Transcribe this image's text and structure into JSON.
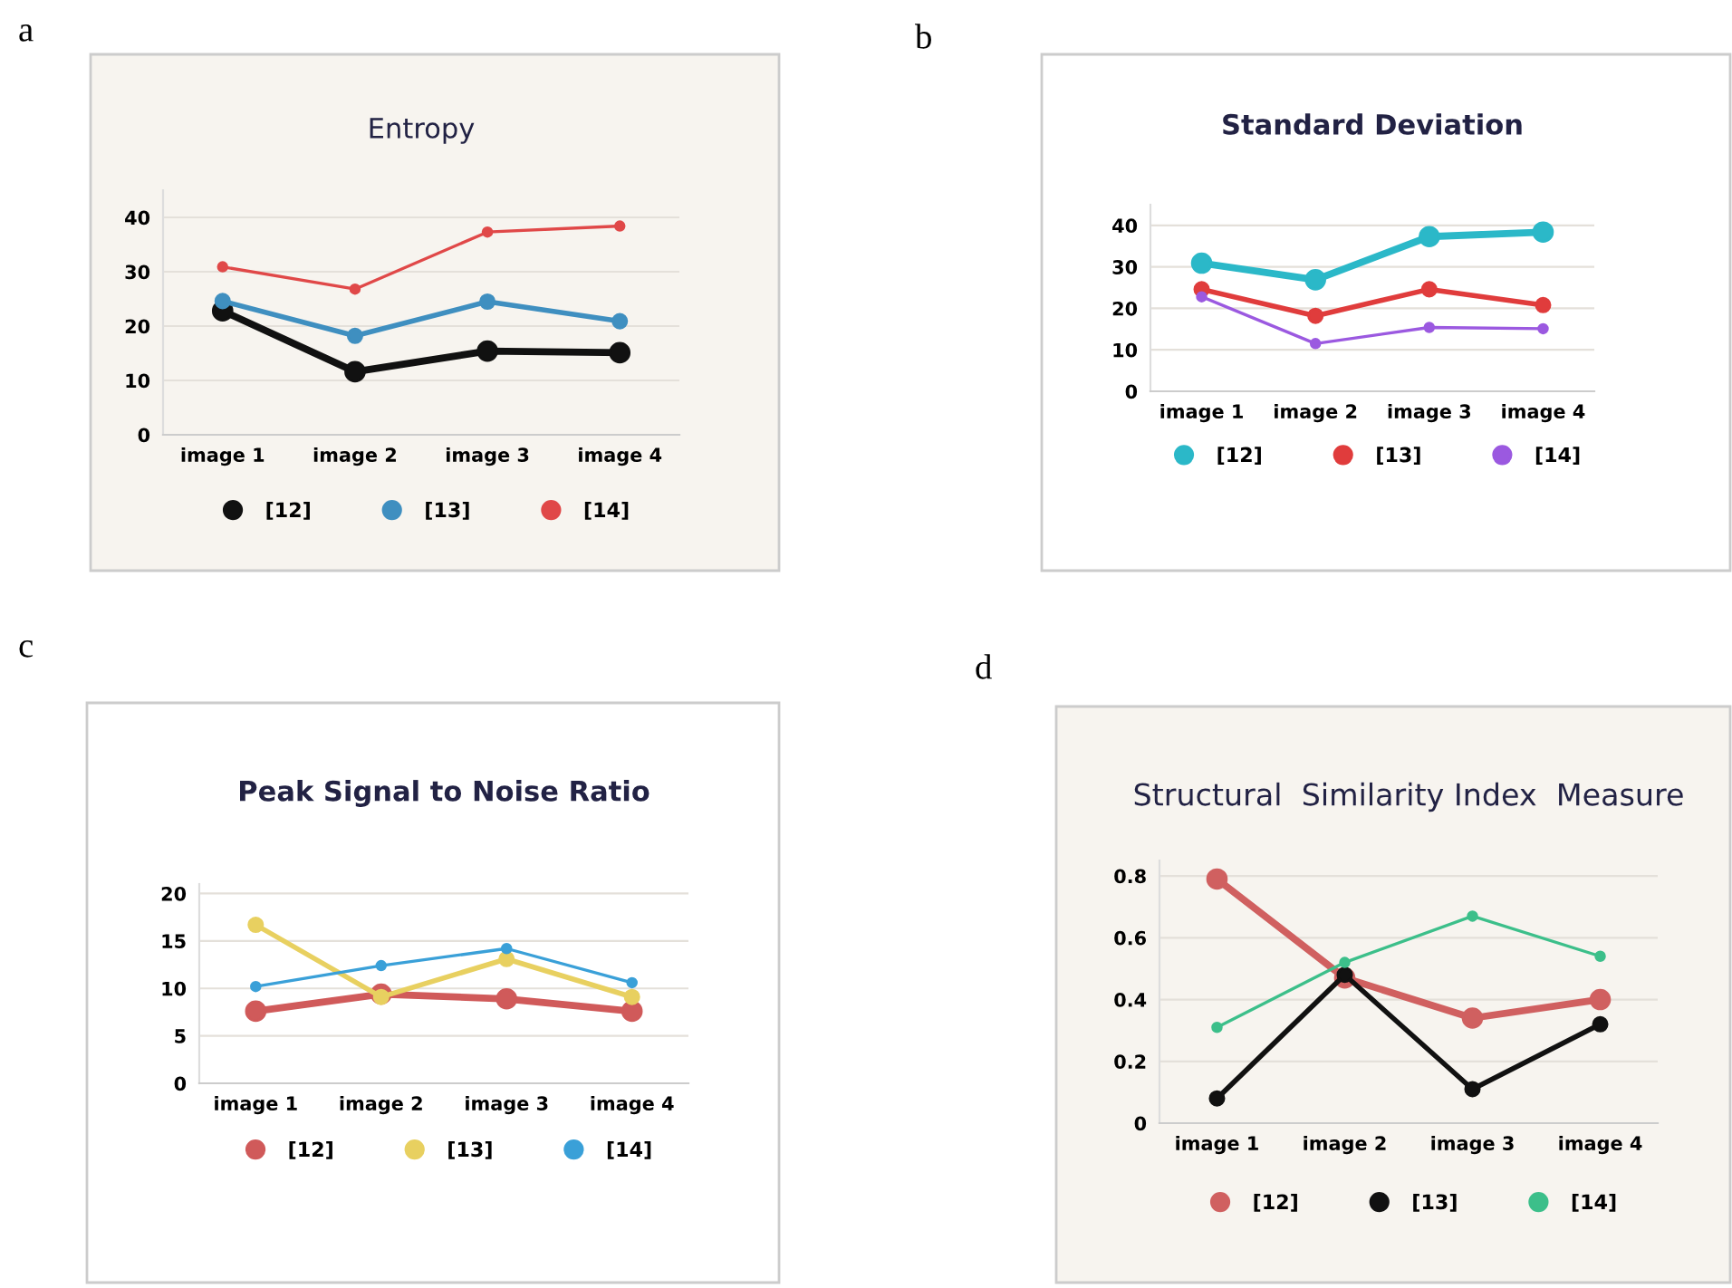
{
  "chart_data": [
    {
      "type": "line",
      "title": "Entropy",
      "annotations": [
        "a"
      ],
      "categories": [
        "image 1",
        "image 2",
        "image 3",
        "image 4"
      ],
      "series": [
        {
          "name": "[12]",
          "color": "#111111",
          "values": [
            22.8,
            11.6,
            15.4,
            15.1
          ]
        },
        {
          "name": "[13]",
          "color": "#3f8fc0",
          "values": [
            24.6,
            18.2,
            24.5,
            20.9
          ]
        },
        {
          "name": "[14]",
          "color": "#e04848",
          "values": [
            30.9,
            26.8,
            37.3,
            38.4
          ]
        }
      ],
      "ylim": [
        0,
        45
      ],
      "yticks": [
        0,
        10,
        20,
        30,
        40
      ],
      "grid": "y",
      "legend": "bottom",
      "marker": "circle",
      "line_style": "solid"
    },
    {
      "type": "line",
      "title": "Standard Deviation",
      "annotations": [
        "b"
      ],
      "categories": [
        "image 1",
        "image 2",
        "image 3",
        "image 4"
      ],
      "series": [
        {
          "name": "[12]",
          "color": "#2bb8c8",
          "values": [
            30.9,
            26.9,
            37.3,
            38.4
          ]
        },
        {
          "name": "[13]",
          "color": "#e03c3c",
          "values": [
            24.6,
            18.2,
            24.6,
            20.8
          ]
        },
        {
          "name": "[14]",
          "color": "#9b59e0",
          "values": [
            22.8,
            11.5,
            15.4,
            15.1
          ]
        }
      ],
      "ylim": [
        0,
        45
      ],
      "yticks": [
        0,
        10,
        20,
        30,
        40
      ],
      "grid": "y",
      "legend": "bottom",
      "marker": "circle",
      "line_style": "solid"
    },
    {
      "type": "line",
      "title": "Peak Signal to Noise Ratio",
      "annotations": [
        "c"
      ],
      "categories": [
        "image 1",
        "image 2",
        "image 3",
        "image 4"
      ],
      "series": [
        {
          "name": "[12]",
          "color": "#d05a5a",
          "values": [
            7.6,
            9.4,
            8.9,
            7.6
          ]
        },
        {
          "name": "[13]",
          "color": "#e8d060",
          "values": [
            16.7,
            9.1,
            13.1,
            9.1
          ]
        },
        {
          "name": "[14]",
          "color": "#3aa0d8",
          "values": [
            10.2,
            12.4,
            14.2,
            10.6
          ]
        }
      ],
      "ylim": [
        0,
        21
      ],
      "yticks": [
        0,
        5,
        10,
        15,
        20
      ],
      "grid": "y",
      "legend": "bottom",
      "marker": "circle",
      "line_style": "solid"
    },
    {
      "type": "line",
      "title": "Structural  Similarity Index  Measure",
      "annotations": [
        "d"
      ],
      "categories": [
        "image 1",
        "image 2",
        "image 3",
        "image 4"
      ],
      "series": [
        {
          "name": "[12]",
          "color": "#d06060",
          "values": [
            0.79,
            0.47,
            0.34,
            0.4
          ]
        },
        {
          "name": "[13]",
          "color": "#111111",
          "values": [
            0.08,
            0.48,
            0.11,
            0.32
          ]
        },
        {
          "name": "[14]",
          "color": "#3cbf8a",
          "values": [
            0.31,
            0.52,
            0.67,
            0.54
          ]
        }
      ],
      "ylim": [
        0,
        0.85
      ],
      "yticks": [
        {
          "value": 0,
          "label": "0"
        },
        0.2,
        0.4,
        0.6,
        0.8
      ],
      "grid": "y",
      "legend": "bottom",
      "marker": "circle",
      "line_style": "solid"
    }
  ]
}
